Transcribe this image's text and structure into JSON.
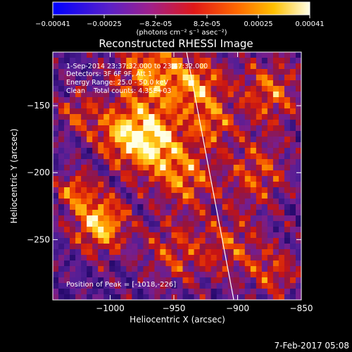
{
  "colorbar": {
    "ticks": [
      "-0.00041",
      "-0.00025",
      "-8.2e-05",
      "8.2e-05",
      "0.00025",
      "0.00041"
    ],
    "units": "(photons cm⁻² s⁻¹ asec⁻²)"
  },
  "footer": {
    "date": "7-Feb-2017 05:08"
  },
  "chart_data": {
    "type": "heatmap",
    "title": "Reconstructed RHESSI Image",
    "xlabel": "Heliocentric X (arcsec)",
    "ylabel": "Heliocentric Y (arcsec)",
    "xlim": [
      -1045,
      -850
    ],
    "ylim": [
      -295,
      -110
    ],
    "xticks": [
      -1000,
      -950,
      -900,
      -850
    ],
    "xtick_labels": [
      "−1000",
      "−950",
      "−900",
      "−850"
    ],
    "yticks": [
      -250,
      -200,
      -150
    ],
    "ytick_labels": [
      "−250",
      "−200",
      "−150"
    ],
    "colormap": "blue-purple-red-orange-yellow-white",
    "color_range": [
      -0.00041,
      0.00041
    ],
    "annotations": [
      "1-Sep-2014 23:37:32.000 to 23:47:32.000",
      "Detectors: 3F 6F 9F, Att 1",
      "Energy Range: 25.0 - 50.0 keV",
      "Clean    Total counts: 4.35E+03",
      "Position of Peak = [-1018,-226]"
    ],
    "limb_line": [
      [
        -940,
        -110
      ],
      [
        -903,
        -295
      ]
    ],
    "peak": [
      -1018,
      -226
    ]
  }
}
